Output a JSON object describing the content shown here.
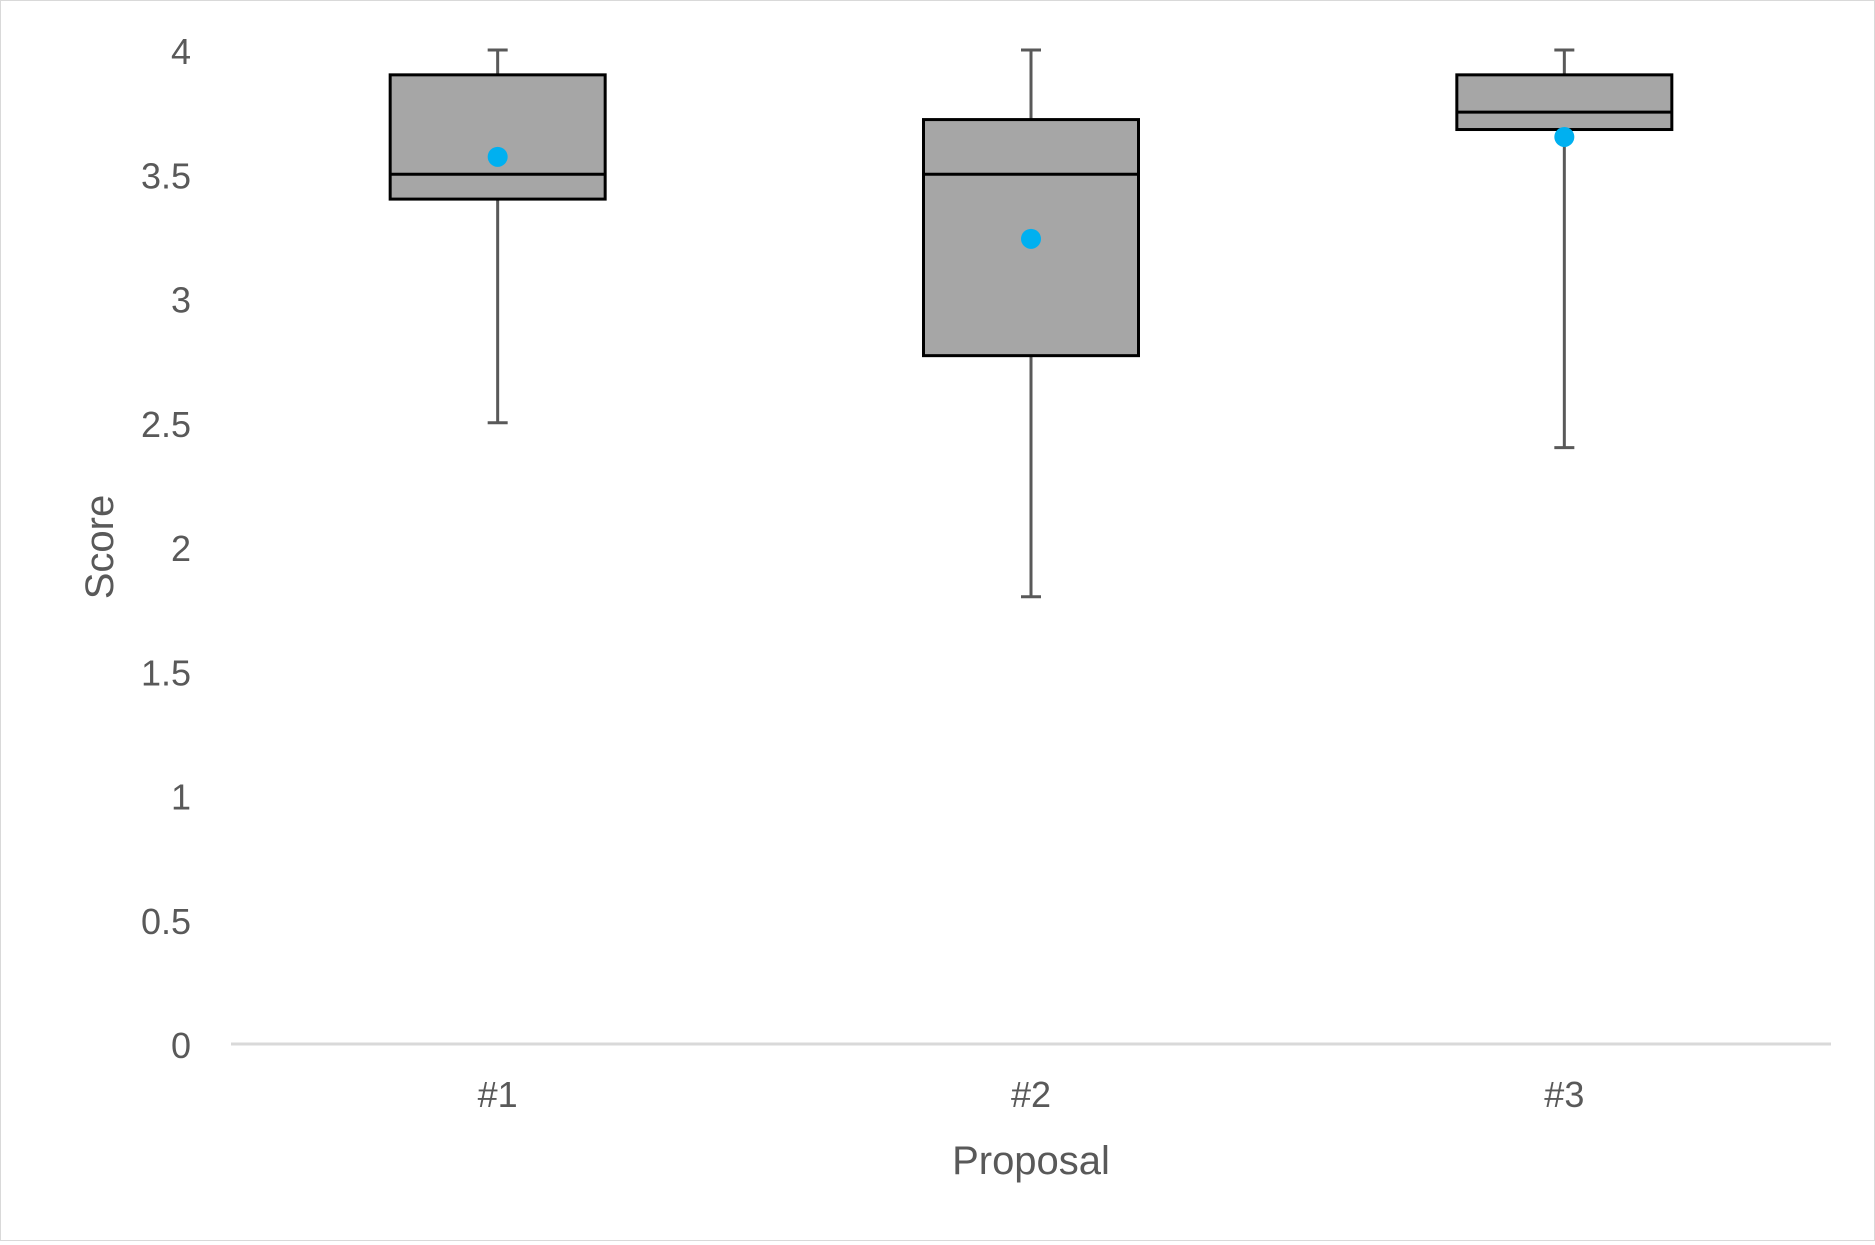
{
  "chart_data": {
    "type": "box",
    "title": "",
    "xlabel": "Proposal",
    "ylabel": "Score",
    "categories": [
      "#1",
      "#2",
      "#3"
    ],
    "ylim": [
      0,
      4
    ],
    "y_ticks": [
      "0",
      "0.5",
      "1",
      "1.5",
      "2",
      "2.5",
      "3",
      "3.5",
      "4"
    ],
    "y_tick_values": [
      0,
      0.5,
      1,
      1.5,
      2,
      2.5,
      3,
      3.5,
      4
    ],
    "grid": false,
    "legend": "none",
    "boxes": [
      {
        "category": "#1",
        "min": 2.5,
        "q1": 3.4,
        "median": 3.5,
        "q3": 3.9,
        "max": 4.0,
        "mean": 3.57
      },
      {
        "category": "#2",
        "min": 1.8,
        "q1": 2.77,
        "median": 3.5,
        "q3": 3.72,
        "max": 4.0,
        "mean": 3.24
      },
      {
        "category": "#3",
        "min": 2.4,
        "q1": 3.68,
        "median": 3.75,
        "q3": 3.9,
        "max": 4.0,
        "mean": 3.65
      }
    ],
    "colors": {
      "box_fill": "#a6a6a6",
      "box_stroke": "#000000",
      "whisker": "#595959",
      "mean_marker": "#00b0f0",
      "axis": "#d9d9d9"
    }
  }
}
